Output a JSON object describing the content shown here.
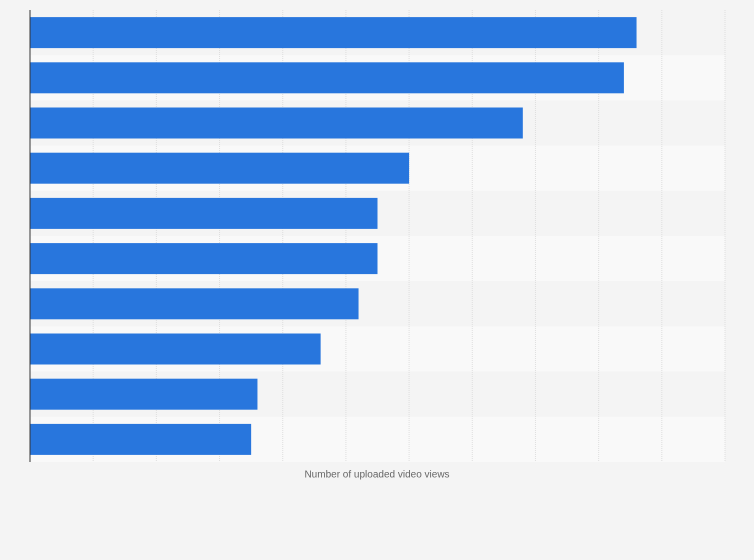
{
  "chart_data": {
    "type": "hbar",
    "x_label": "Number of uploaded video views",
    "categories": [
      null,
      null,
      null,
      null,
      null,
      null,
      null,
      null,
      null,
      null
    ],
    "values": [
      9.6,
      9.4,
      7.8,
      6.0,
      5.5,
      5.5,
      5.2,
      4.6,
      3.6,
      3.5
    ],
    "color": "#2876dd",
    "xlim": [
      0,
      11
    ],
    "xticks": [
      0,
      1,
      2,
      3,
      4,
      5,
      6,
      7,
      8,
      9,
      10,
      11
    ],
    "grid": true
  }
}
